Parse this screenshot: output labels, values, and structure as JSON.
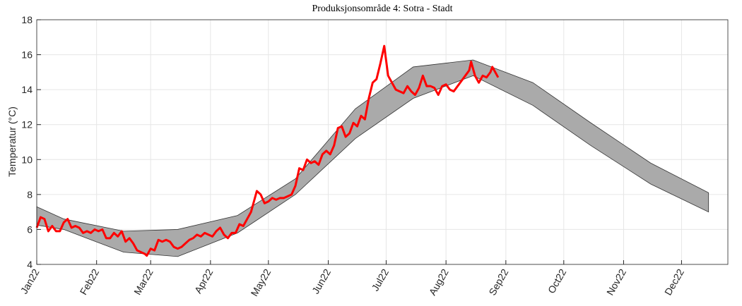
{
  "chart_data": {
    "type": "line",
    "title": "Produksjonsområde 4: Sotra - Stadt",
    "y_label": "Temperatur (°C)",
    "xlim": [
      0,
      358
    ],
    "xticks": [
      {
        "value": 0,
        "label": "Jan22"
      },
      {
        "value": 31,
        "label": "Feb22"
      },
      {
        "value": 59,
        "label": "Mar22"
      },
      {
        "value": 90,
        "label": "Apr22"
      },
      {
        "value": 120,
        "label": "May22"
      },
      {
        "value": 151,
        "label": "Jun22"
      },
      {
        "value": 181,
        "label": "Jul22"
      },
      {
        "value": 212,
        "label": "Aug22"
      },
      {
        "value": 243,
        "label": "Sep22"
      },
      {
        "value": 273,
        "label": "Oct22"
      },
      {
        "value": 304,
        "label": "Nov22"
      },
      {
        "value": 334,
        "label": "Dec22"
      }
    ],
    "ylim": [
      4,
      18
    ],
    "yticks": [
      4,
      6,
      8,
      10,
      12,
      14,
      16,
      18
    ],
    "grid": true,
    "band": {
      "color": "#aaaaaa",
      "x": [
        0,
        14,
        45,
        73,
        104,
        134,
        165,
        195,
        226,
        257,
        287,
        318,
        348
      ],
      "upper": [
        7.3,
        6.6,
        5.9,
        6.0,
        6.8,
        8.9,
        12.9,
        15.3,
        15.7,
        14.4,
        12.1,
        9.8,
        8.1
      ],
      "lower": [
        6.25,
        6.0,
        4.7,
        4.45,
        5.8,
        8.0,
        11.2,
        13.5,
        14.8,
        13.1,
        10.8,
        8.6,
        7.0
      ]
    },
    "series": [
      {
        "color": "#ff0000",
        "x": [
          0,
          2,
          4,
          6,
          8,
          10,
          12,
          14,
          16,
          18,
          20,
          22,
          24,
          26,
          28,
          30,
          32,
          34,
          36,
          38,
          40,
          42,
          44,
          46,
          48,
          50,
          52,
          54,
          56,
          57,
          59,
          61,
          63,
          65,
          67,
          69,
          71,
          73,
          75,
          77,
          79,
          81,
          83,
          85,
          87,
          89,
          91,
          93,
          95,
          97,
          99,
          101,
          103,
          105,
          107,
          109,
          111,
          113,
          114,
          116,
          118,
          120,
          122,
          124,
          126,
          128,
          130,
          132,
          134,
          136,
          138,
          140,
          142,
          144,
          146,
          148,
          150,
          152,
          154,
          156,
          158,
          160,
          162,
          164,
          166,
          168,
          170,
          172,
          174,
          176,
          178,
          180,
          182,
          184,
          186,
          188,
          190,
          192,
          194,
          196,
          198,
          200,
          202,
          204,
          206,
          208,
          210,
          212,
          214,
          216,
          218,
          220,
          222,
          224,
          225,
          227,
          229,
          231,
          233,
          235,
          236,
          238,
          239
        ],
        "values": [
          6.1,
          6.7,
          6.6,
          5.9,
          6.2,
          5.9,
          5.9,
          6.4,
          6.6,
          6.1,
          6.2,
          6.1,
          5.8,
          5.9,
          5.8,
          6.0,
          5.9,
          6.0,
          5.5,
          5.5,
          5.8,
          5.6,
          5.9,
          5.3,
          5.5,
          5.2,
          4.8,
          4.7,
          4.6,
          4.5,
          4.9,
          4.8,
          5.4,
          5.3,
          5.4,
          5.3,
          5.0,
          4.9,
          5.0,
          5.2,
          5.4,
          5.5,
          5.7,
          5.6,
          5.8,
          5.7,
          5.6,
          5.9,
          6.1,
          5.7,
          5.5,
          5.8,
          5.8,
          6.3,
          6.2,
          6.6,
          7.0,
          7.8,
          8.2,
          8.0,
          7.5,
          7.6,
          7.8,
          7.7,
          7.8,
          7.8,
          7.9,
          8.0,
          8.5,
          9.5,
          9.4,
          10.0,
          9.8,
          9.9,
          9.7,
          10.3,
          10.5,
          10.3,
          10.8,
          11.8,
          11.9,
          11.3,
          11.5,
          12.1,
          11.9,
          12.5,
          12.3,
          13.5,
          14.4,
          14.6,
          15.5,
          16.5,
          14.8,
          14.4,
          14.0,
          13.9,
          13.8,
          14.2,
          13.9,
          13.7,
          14.1,
          14.8,
          14.2,
          14.2,
          14.1,
          13.7,
          14.2,
          14.3,
          14.0,
          13.9,
          14.2,
          14.5,
          14.8,
          15.1,
          15.6,
          14.8,
          14.4,
          14.8,
          14.7,
          15.0,
          15.3,
          14.9,
          14.7
        ]
      }
    ]
  }
}
